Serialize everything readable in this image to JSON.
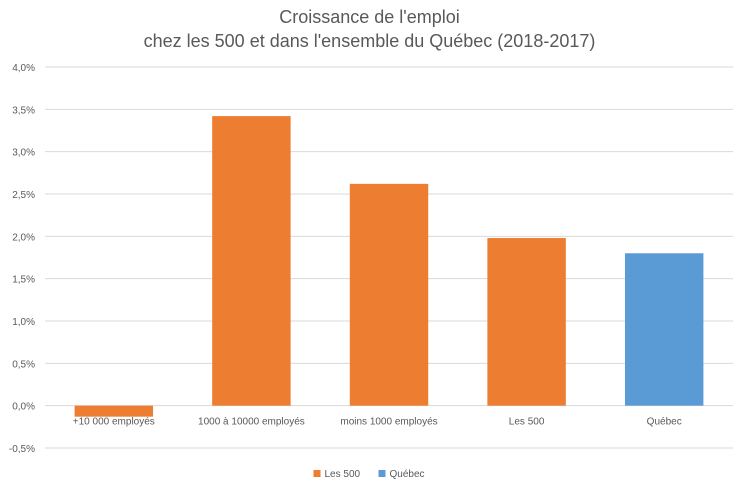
{
  "chart_data": {
    "type": "bar",
    "title": "Croissance de l'emploi",
    "subtitle": "chez les 500 et dans l'ensemble du Québec (2018-2017)",
    "categories": [
      "+10 000 employés",
      "1000 à 10000 employés",
      "moins 1000 employés",
      "Les 500",
      "Québec"
    ],
    "values": [
      -0.13,
      3.42,
      2.62,
      1.98,
      1.8
    ],
    "bar_series": [
      "Les 500",
      "Les 500",
      "Les 500",
      "Les 500",
      "Québec"
    ],
    "series": [
      {
        "name": "Les 500",
        "color": "#ED7D31"
      },
      {
        "name": "Québec",
        "color": "#5B9BD5"
      }
    ],
    "y_ticks": [
      "4,0%",
      "3,5%",
      "3,0%",
      "2,5%",
      "2,0%",
      "1,5%",
      "1,0%",
      "0,5%",
      "0,0%",
      "-0,5%"
    ],
    "ylim": [
      -0.5,
      4.0
    ],
    "grid": true,
    "legend_position": "bottom"
  }
}
